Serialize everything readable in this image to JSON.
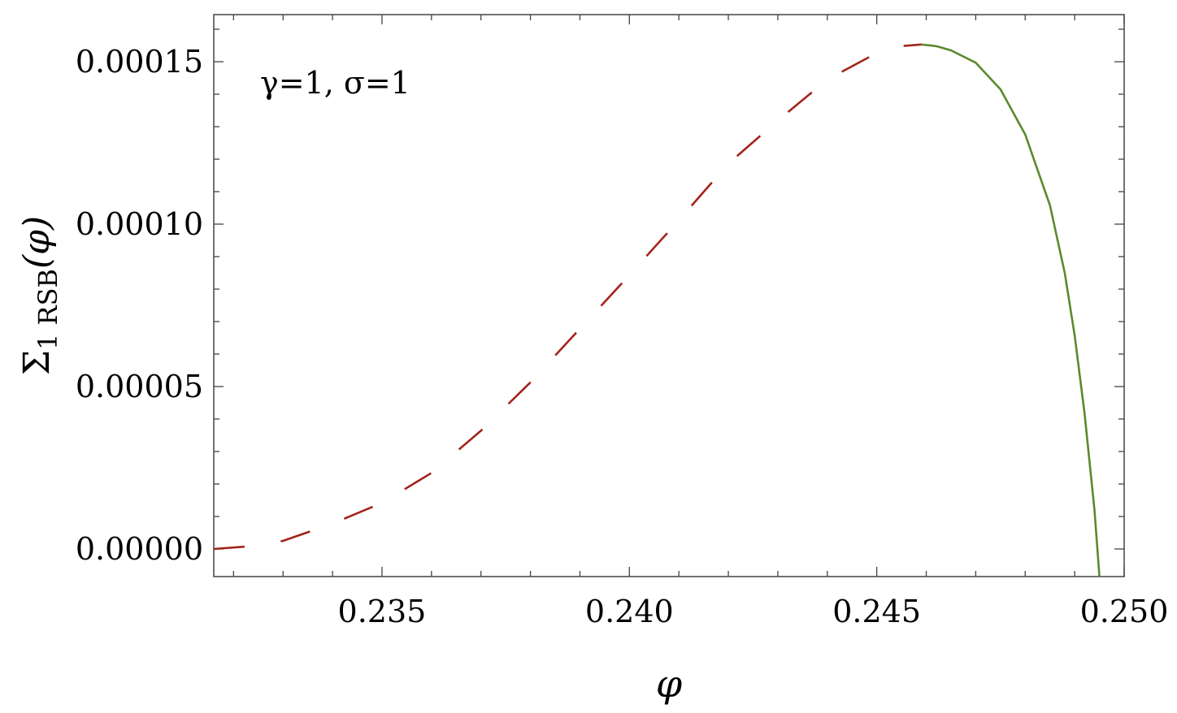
{
  "chart_data": {
    "type": "line",
    "xlabel": "φ",
    "ylabel": {
      "symbol": "Σ",
      "subscript": "1 RSB",
      "suffix": "(φ)"
    },
    "annotation": "γ=1, σ=1",
    "xlim": [
      0.2316,
      0.25
    ],
    "ylim": [
      -8.5e-06,
      0.0001645
    ],
    "x_ticks": [
      "0.235",
      "0.240",
      "0.245",
      "0.250"
    ],
    "y_ticks": [
      "0.00000",
      "0.00005",
      "0.00010",
      "0.00015"
    ],
    "x_tick_values": [
      0.235,
      0.24,
      0.245,
      0.25
    ],
    "y_tick_values": [
      0.0,
      5e-05,
      0.0001,
      0.00015
    ],
    "grid": false,
    "series": [
      {
        "style": "dashed",
        "color": "#a3241b",
        "x": [
          0.2316,
          0.2325,
          0.233,
          0.234,
          0.235,
          0.236,
          0.237,
          0.238,
          0.239,
          0.24,
          0.241,
          0.242,
          0.243,
          0.244,
          0.245,
          0.2455,
          0.2459
        ],
        "y": [
          0.0,
          1e-06,
          2.5e-06,
          7.8e-06,
          1.42e-05,
          2.34e-05,
          3.64e-05,
          5.13e-05,
          6.78e-05,
          8.43e-05,
          0.0001012,
          0.0001186,
          0.0001319,
          0.0001445,
          0.0001527,
          0.0001548,
          0.0001553
        ]
      },
      {
        "style": "solid",
        "color": "#5a8a2c",
        "x": [
          0.2459,
          0.2462,
          0.2465,
          0.247,
          0.2475,
          0.248,
          0.2485,
          0.2488,
          0.249,
          0.2492,
          0.2494,
          0.2495
        ],
        "y": [
          0.0001553,
          0.0001548,
          0.0001535,
          0.0001497,
          0.0001415,
          0.0001276,
          0.0001058,
          8.49e-05,
          6.57e-05,
          4.17e-05,
          1.2e-05,
          -8.5e-06
        ]
      }
    ]
  }
}
